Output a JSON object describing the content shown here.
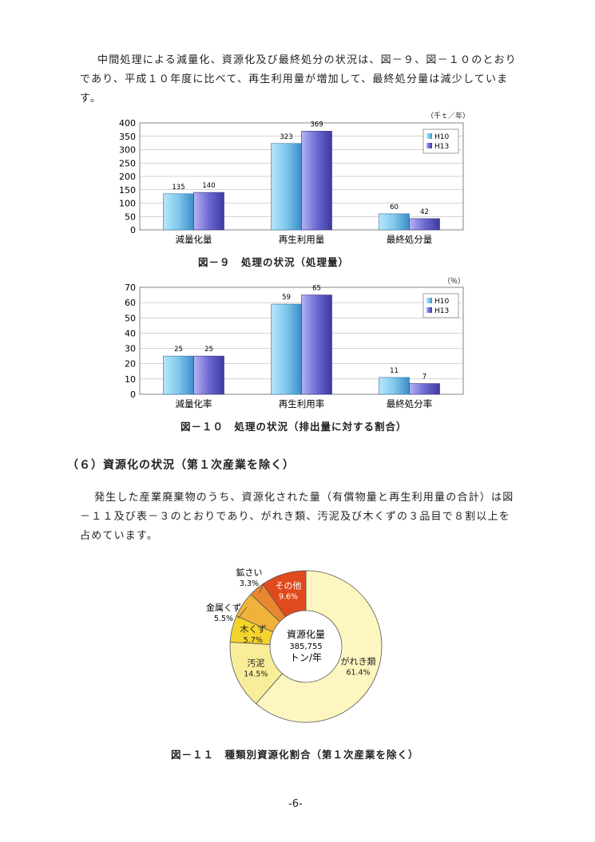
{
  "intro_paragraph": {
    "line1": "中間処理による減量化、資源化及び最終処分の状況は、図－９、図－１０のとおり",
    "line2": "であり、平成１０年度に比べて、再生利用量が増加して、最終処分量は減少していま",
    "line3": "す。"
  },
  "figures": [
    {
      "caption": "図－９　処理の状況（処理量）",
      "unit": "（千ｔ／年）",
      "chart_data": {
        "type": "bar",
        "categories": [
          "減量化量",
          "再生利用量",
          "最終処分量"
        ],
        "series": [
          {
            "name": "H10",
            "values": [
              135,
              323,
              60
            ]
          },
          {
            "name": "H13",
            "values": [
              140,
              369,
              42
            ]
          }
        ],
        "ylim": [
          0,
          400
        ],
        "yticks": [
          0,
          50,
          100,
          150,
          200,
          250,
          300,
          350,
          400
        ],
        "grid": true,
        "legend": "top-right"
      }
    },
    {
      "caption": "図－１０　処理の状況（排出量に対する割合）",
      "unit": "（％）",
      "chart_data": {
        "type": "bar",
        "categories": [
          "減量化率",
          "再生利用率",
          "最終処分率"
        ],
        "series": [
          {
            "name": "H10",
            "values": [
              25,
              59,
              11
            ]
          },
          {
            "name": "H13",
            "values": [
              25,
              65,
              7
            ]
          }
        ],
        "ylim": [
          0,
          70
        ],
        "yticks": [
          0,
          10,
          20,
          30,
          40,
          50,
          60,
          70
        ],
        "grid": true,
        "legend": "top-right"
      }
    }
  ],
  "section_heading": "（６）資源化の状況（第１次産業を除く）",
  "section_paragraph": {
    "line1": "発生した産業廃棄物のうち、資源化された量（有償物量と再生利用量の合計）は図",
    "line2": "－１１及び表－３のとおりであり、がれき類、汚泥及び木くずの３品目で８割以上を",
    "line3": "占めています。"
  },
  "pie_figure": {
    "caption": "図－１１　種類別資源化割合（第１次産業を除く）",
    "center_label": {
      "line1": "資源化量",
      "line2": "385,755",
      "line3": "トン/年"
    },
    "chart_data": {
      "type": "pie",
      "slices": [
        {
          "label": "がれき類",
          "value": 61.4,
          "pct": "61.4%",
          "color": "#fdf6c0"
        },
        {
          "label": "汚泥",
          "value": 14.5,
          "pct": "14.5%",
          "color": "#f8ee9a"
        },
        {
          "label": "木くず",
          "value": 5.7,
          "pct": "5.7%",
          "color": "#f4d42c"
        },
        {
          "label": "金属くず",
          "value": 5.5,
          "pct": "5.5%",
          "color": "#f0b23a"
        },
        {
          "label": "鉱さい",
          "value": 3.3,
          "pct": "3.3%",
          "color": "#e9872e"
        },
        {
          "label": "その他",
          "value": 9.6,
          "pct": "9.6%",
          "color": "#e04a1c"
        }
      ]
    }
  },
  "colors": {
    "h10_bar": "#7ec8ec",
    "h13_bar": "#6c6ad2"
  },
  "page_number": "-6-"
}
